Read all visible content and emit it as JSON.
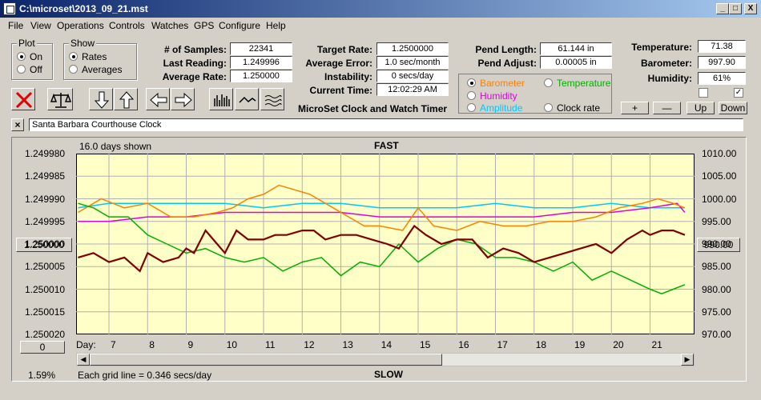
{
  "window": {
    "title": "C:\\microset\\2013_09_21.mst",
    "min_symbol": "_",
    "max_symbol": "□",
    "close_symbol": "X"
  },
  "menu": [
    "File",
    "View",
    "Operations",
    "Controls",
    "Watches",
    "GPS",
    "Configure",
    "Help"
  ],
  "plot_group": {
    "title": "Plot",
    "on": "On",
    "off": "Off",
    "selected": "On"
  },
  "show_group": {
    "title": "Show",
    "rates": "Rates",
    "averages": "Averages",
    "selected": "Rates"
  },
  "stats": {
    "samples_label": "# of Samples:",
    "samples": "22341",
    "last_reading_label": "Last Reading:",
    "last_reading": "1.249996",
    "average_rate_label": "Average Rate:",
    "average_rate": "1.250000",
    "target_rate_label": "Target Rate:",
    "target_rate": "1.2500000",
    "average_error_label": "Average Error:",
    "average_error": "1.0 sec/month",
    "instability_label": "Instability:",
    "instability": "0 secs/day",
    "current_time_label": "Current Time:",
    "current_time": "12:02:29 AM",
    "pend_length_label": "Pend Length:",
    "pend_length": "61.144 in",
    "pend_adjust_label": "Pend Adjust:",
    "pend_adjust": "0.00005 in",
    "temperature_label": "Temperature:",
    "temperature": "71.38",
    "barometer_label": "Barometer:",
    "barometer": "997.90",
    "humidity_label": "Humidity:",
    "humidity": "61%"
  },
  "app_caption": "MicroSet Clock and Watch Timer",
  "series_select": {
    "barometer": "Barometer",
    "temperature": "Temperature",
    "humidity": "Humidity",
    "amplitude": "Amplitude",
    "clock_rate": "Clock rate",
    "selected": "Barometer"
  },
  "scale_buttons": {
    "plus": "+",
    "minus": "—",
    "up": "Up",
    "down": "Down"
  },
  "clock_name": "Santa Barbara Courthouse Clock",
  "colors": {
    "plot_bg": "#ffffc8",
    "rate": "#800000",
    "barometer": "#ff8000",
    "temperature": "#00b000",
    "humidity": "#e000e0",
    "amplitude": "#00c8ff"
  },
  "chart_data": {
    "type": "line",
    "days_shown": "16.0 days shown",
    "top_label": "FAST",
    "bottom_label": "SLOW",
    "grid_note": "Each grid line = 0.346 secs/day",
    "percent": "1.59%",
    "left_center_button": "1.250000",
    "right_center_button": "990.00",
    "bottom_left_button": "0",
    "day_axis_label": "Day:",
    "left_ticks": [
      "1.249980",
      "1.249985",
      "1.249990",
      "1.249995",
      "1.250000",
      "1.250005",
      "1.250010",
      "1.250015",
      "1.250020"
    ],
    "right_ticks": [
      "1010.00",
      "1005.00",
      "1000.00",
      "995.00",
      "990.00",
      "985.00",
      "980.00",
      "975.00",
      "970.00"
    ],
    "x_ticks": [
      7,
      8,
      9,
      10,
      11,
      12,
      13,
      14,
      15,
      16,
      17,
      18,
      19,
      20,
      21
    ],
    "xlim": [
      6.15,
      22.15
    ],
    "ylim_left": [
      1.24998,
      1.25002
    ],
    "ylim_right": [
      970,
      1010
    ],
    "series": [
      {
        "name": "Rate",
        "axis": "left",
        "color": "#800000",
        "x": [
          6.2,
          6.6,
          7.0,
          7.4,
          7.8,
          8.0,
          8.4,
          8.8,
          9.0,
          9.2,
          9.5,
          9.8,
          10.0,
          10.3,
          10.6,
          11.0,
          11.3,
          11.6,
          12.0,
          12.3,
          12.6,
          13.0,
          13.4,
          13.8,
          14.2,
          14.5,
          14.9,
          15.2,
          15.6,
          16.0,
          16.4,
          16.8,
          17.2,
          17.6,
          18.0,
          18.4,
          18.8,
          19.2,
          19.6,
          20.0,
          20.4,
          20.8,
          21.0,
          21.3,
          21.6,
          21.9
        ],
        "y": [
          1.250003,
          1.250002,
          1.250004,
          1.250003,
          1.250006,
          1.250002,
          1.250004,
          1.250003,
          1.250001,
          1.250002,
          1.249997,
          1.25,
          1.250002,
          1.249997,
          1.249999,
          1.249999,
          1.249998,
          1.249998,
          1.249997,
          1.249997,
          1.249999,
          1.249998,
          1.249998,
          1.249999,
          1.25,
          1.250001,
          1.249996,
          1.249998,
          1.25,
          1.249999,
          1.249999,
          1.250003,
          1.250001,
          1.250002,
          1.250004,
          1.250003,
          1.250002,
          1.250001,
          1.25,
          1.250002,
          1.249999,
          1.249997,
          1.249998,
          1.249997,
          1.249997,
          1.249998
        ]
      },
      {
        "name": "Barometer",
        "axis": "right",
        "color": "#ff8000",
        "x": [
          6.2,
          6.8,
          7.4,
          8.0,
          8.6,
          9.2,
          9.8,
          10.2,
          10.6,
          11.0,
          11.4,
          11.8,
          12.2,
          12.8,
          13.2,
          13.6,
          14.0,
          14.6,
          15.0,
          15.4,
          16.0,
          16.6,
          17.2,
          17.8,
          18.4,
          19.0,
          19.6,
          20.2,
          20.8,
          21.2,
          21.6,
          21.9
        ],
        "y": [
          997,
          1000,
          998,
          999,
          996,
          996,
          997,
          998,
          1000,
          1001,
          1003,
          1002,
          1001,
          998,
          996,
          994,
          994,
          993,
          998,
          994,
          993,
          995,
          994,
          994,
          995,
          995,
          996,
          998,
          999,
          1000,
          999,
          998
        ]
      },
      {
        "name": "Temperature",
        "axis": "right",
        "color": "#00b000",
        "x": [
          6.2,
          6.6,
          7.0,
          7.5,
          8.0,
          8.5,
          9.0,
          9.5,
          10.0,
          10.5,
          11.0,
          11.5,
          12.0,
          12.5,
          13.0,
          13.5,
          14.0,
          14.5,
          15.0,
          15.5,
          16.0,
          16.5,
          17.0,
          17.5,
          18.0,
          18.5,
          19.0,
          19.5,
          20.0,
          20.5,
          21.0,
          21.3,
          21.6,
          21.9
        ],
        "y": [
          999,
          998,
          996,
          996,
          992,
          990,
          988,
          989,
          987,
          986,
          987,
          984,
          986,
          987,
          983,
          986,
          985,
          990,
          986,
          989,
          991,
          990,
          987,
          987,
          986,
          984,
          986,
          982,
          984,
          982,
          980,
          979,
          980,
          981
        ]
      },
      {
        "name": "Humidity",
        "axis": "right",
        "color": "#e000e0",
        "x": [
          6.2,
          7.0,
          8.0,
          9.0,
          10.0,
          11.0,
          12.0,
          13.0,
          14.0,
          15.0,
          16.0,
          17.0,
          18.0,
          19.0,
          20.0,
          21.0,
          21.7,
          21.9
        ],
        "y": [
          995,
          995,
          996,
          996,
          997,
          997,
          997,
          997,
          996,
          996,
          996,
          996,
          996,
          997,
          997,
          998,
          999,
          997
        ]
      },
      {
        "name": "Amplitude",
        "axis": "right",
        "color": "#00c8ff",
        "x": [
          6.2,
          7.0,
          8.0,
          9.0,
          10.0,
          11.0,
          12.0,
          13.0,
          14.0,
          15.0,
          16.0,
          17.0,
          18.0,
          19.0,
          20.0,
          21.0,
          21.9
        ],
        "y": [
          998,
          999,
          999,
          999,
          999,
          998,
          999,
          999,
          998,
          998,
          998,
          999,
          998,
          998,
          999,
          998,
          998
        ]
      }
    ]
  }
}
